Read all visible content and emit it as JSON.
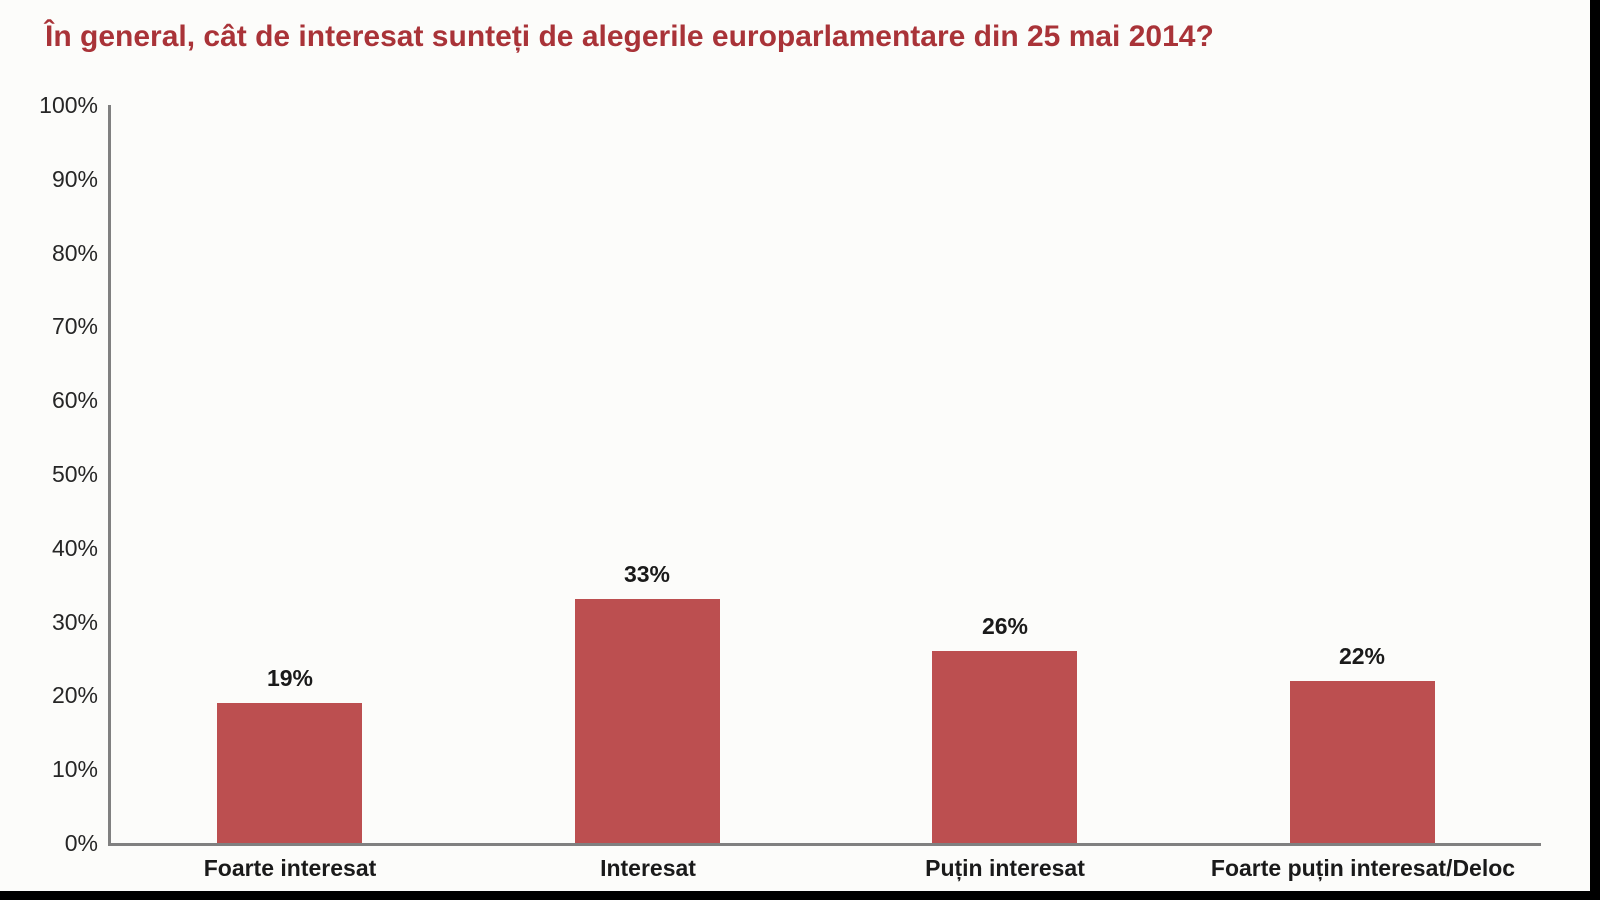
{
  "chart_data": {
    "type": "bar",
    "title": "În general, cât de interesat sunteți de alegerile europarlamentare din 25 mai 2014?",
    "categories": [
      "Foarte interesat",
      "Interesat",
      "Puțin interesat",
      "Foarte puțin interesat/Deloc"
    ],
    "values": [
      19,
      33,
      26,
      22
    ],
    "value_labels": [
      "19%",
      "33%",
      "26%",
      "22%"
    ],
    "ytick_labels": [
      "0%",
      "10%",
      "20%",
      "30%",
      "40%",
      "50%",
      "60%",
      "70%",
      "80%",
      "90%",
      "100%"
    ],
    "ylim": [
      0,
      100
    ],
    "ytick_step": 10,
    "xlabel": "",
    "ylabel": "",
    "grid": false,
    "legend": "none",
    "colors": {
      "title": "#A93338",
      "bar": "#BC4F50",
      "axis": "#808080",
      "text": "#1A1A1A",
      "background": "#FCFCFA",
      "frame": "#000000"
    }
  }
}
